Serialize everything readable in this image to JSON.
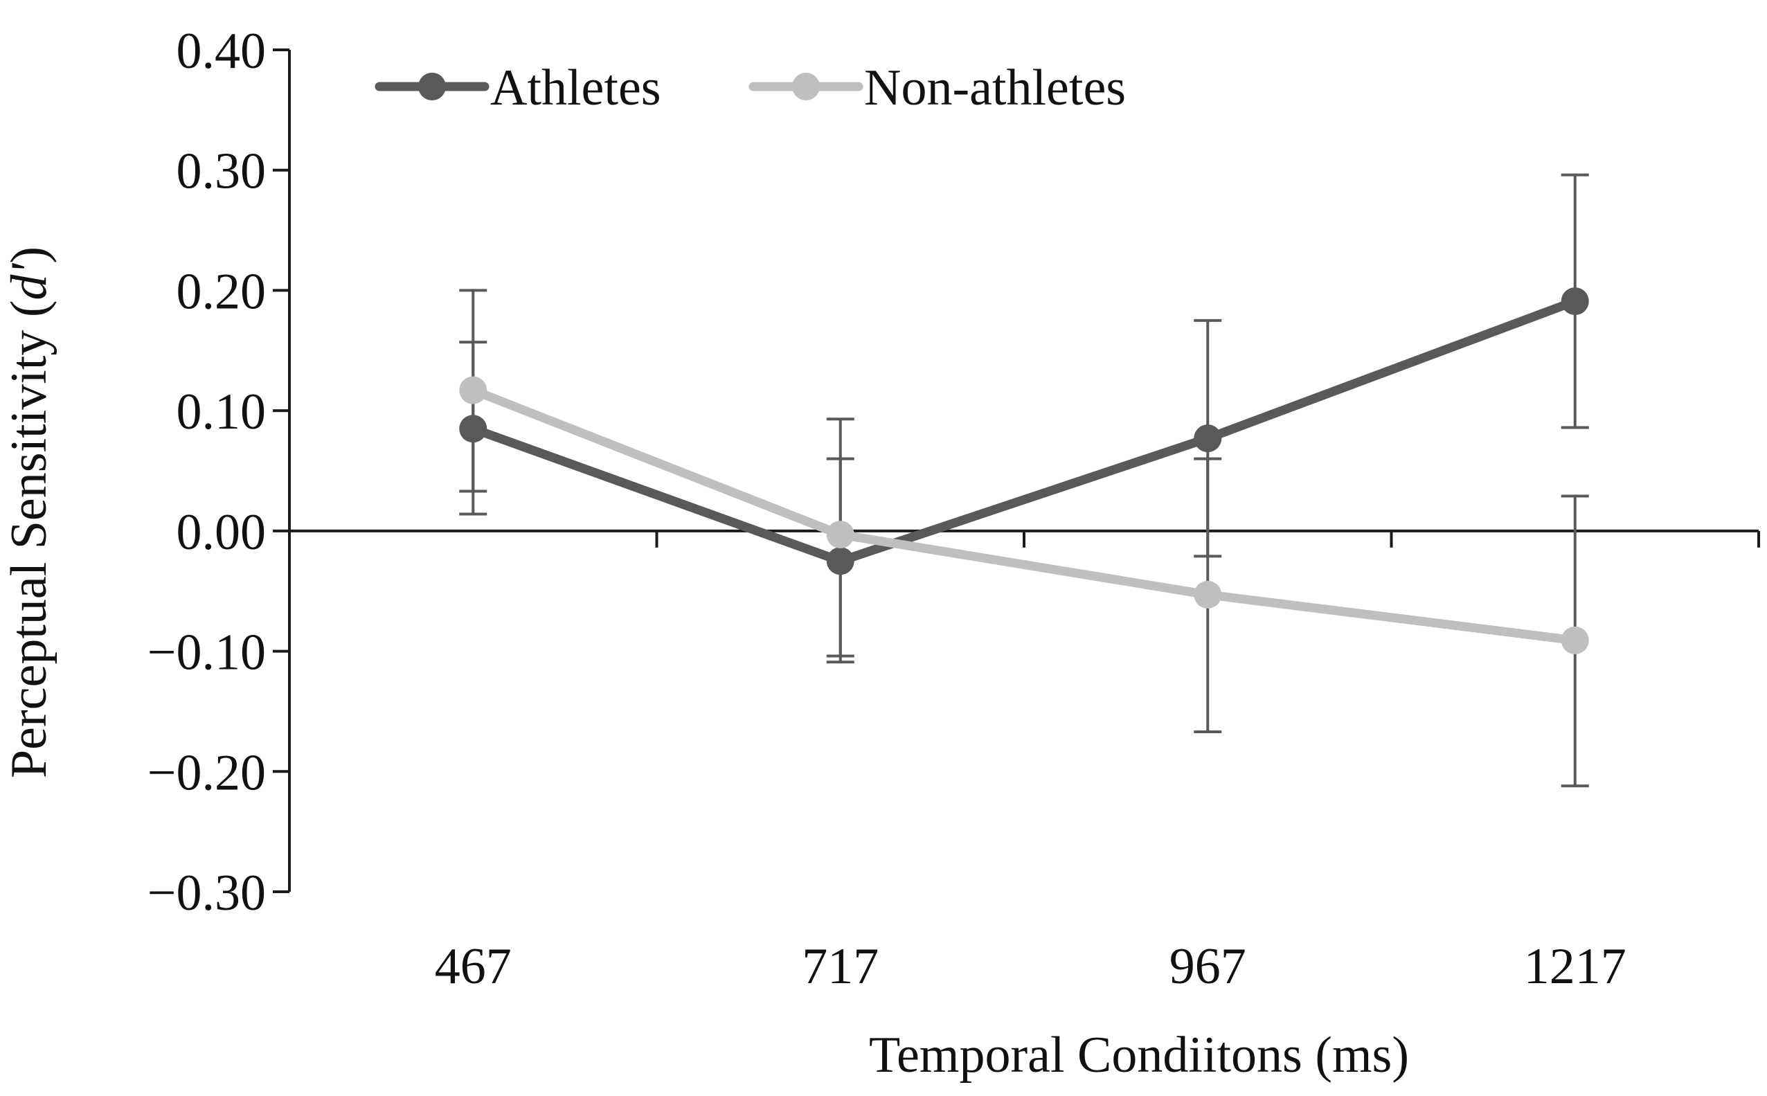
{
  "chart_data": {
    "type": "line",
    "title": "",
    "xlabel": "Temporal Condiitons (ms)",
    "ylabel_main": "Perceptual Sensitivity (",
    "ylabel_symbol": "d'",
    "ylabel_close": ")",
    "categories": [
      "467",
      "717",
      "967",
      "1217"
    ],
    "ylim": [
      -0.3,
      0.4
    ],
    "yticks": [
      0.4,
      0.3,
      0.2,
      0.1,
      0.0,
      -0.1,
      -0.2,
      -0.3
    ],
    "ytick_labels": [
      "0.40",
      "0.30",
      "0.20",
      "0.10",
      "0.00",
      "−0.10",
      "−0.20",
      "−0.30"
    ],
    "grid": false,
    "legend_position": "top",
    "series": [
      {
        "name": "Athletes",
        "color": "#595959",
        "values": [
          0.085,
          -0.025,
          0.077,
          0.191
        ],
        "error_low": [
          0.014,
          -0.109,
          -0.021,
          0.086
        ],
        "error_high": [
          0.157,
          0.06,
          0.175,
          0.296
        ]
      },
      {
        "name": "Non-athletes",
        "color": "#bfbfbf",
        "values": [
          0.117,
          -0.003,
          -0.053,
          -0.091
        ],
        "error_low": [
          0.033,
          -0.104,
          -0.167,
          -0.212
        ],
        "error_high": [
          0.2,
          0.093,
          0.06,
          0.029
        ]
      }
    ],
    "error_bar_color": "#595959"
  }
}
